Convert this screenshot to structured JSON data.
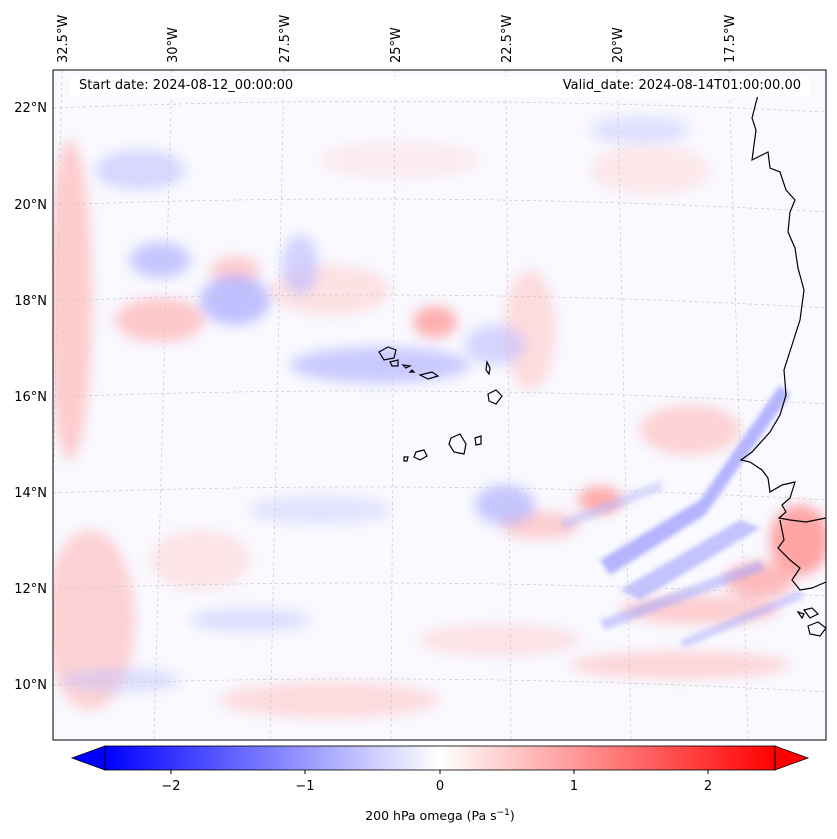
{
  "map": {
    "start_date_label": "Start date: 2024-08-12_00:00:00",
    "valid_date_label": "Valid_date: 2024-08-14T01:00:00.00",
    "lon_labels": [
      "32.5°W",
      "30°W",
      "27.5°W",
      "25°W",
      "22.5°W",
      "20°W",
      "17.5°W"
    ],
    "lat_labels": [
      "22°N",
      "20°N",
      "18°N",
      "16°N",
      "14°N",
      "12°N",
      "10°N"
    ],
    "colors": {
      "negative": "#0000ff",
      "zero": "#ffffff",
      "positive": "#ff0000",
      "coastline": "#000000",
      "gridline": "#bbbbbb"
    }
  },
  "colorbar": {
    "label_prefix": "200 hPa omega (Pa s",
    "label_exponent": "−1",
    "label_suffix": ")",
    "ticks": [
      "−2",
      "−1",
      "0",
      "1",
      "2"
    ],
    "min": -2.6,
    "max": 2.6,
    "extend": "both"
  }
}
